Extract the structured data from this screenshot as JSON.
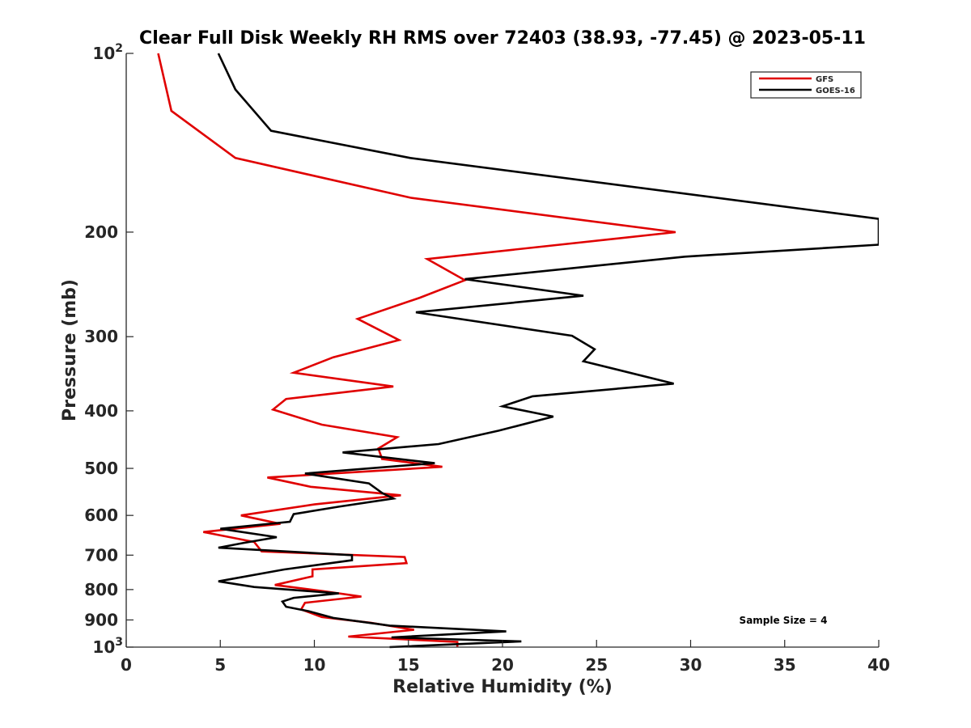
{
  "chart_data": {
    "type": "line",
    "title": "Clear Full Disk Weekly RH RMS over 72403 (38.93, -77.45) @ 2023-05-11",
    "xlabel": "Relative Humidity (%)",
    "ylabel": "Pressure (mb)",
    "xlim": [
      0,
      40
    ],
    "ylim": [
      100,
      1000
    ],
    "yscale": "log",
    "yreversed": true,
    "grid": false,
    "legend_position": "top-right",
    "x_ticks": [
      0,
      5,
      10,
      15,
      20,
      25,
      30,
      35,
      40
    ],
    "y_ticks": [
      {
        "value": 100,
        "label": "10",
        "sup": "2"
      },
      {
        "value": 200,
        "label": "200",
        "sup": ""
      },
      {
        "value": 300,
        "label": "300",
        "sup": ""
      },
      {
        "value": 400,
        "label": "400",
        "sup": ""
      },
      {
        "value": 500,
        "label": "500",
        "sup": ""
      },
      {
        "value": 600,
        "label": "600",
        "sup": ""
      },
      {
        "value": 700,
        "label": "700",
        "sup": ""
      },
      {
        "value": 800,
        "label": "800",
        "sup": ""
      },
      {
        "value": 900,
        "label": "900",
        "sup": ""
      },
      {
        "value": 1000,
        "label": "10",
        "sup": "3"
      }
    ],
    "annotation": "Sample Size = 4",
    "series": [
      {
        "name": "GFS",
        "color": "#e00000",
        "points": [
          [
            1.7,
            100
          ],
          [
            2.4,
            125
          ],
          [
            5.8,
            150
          ],
          [
            15.1,
            175
          ],
          [
            29.2,
            200
          ],
          [
            16.0,
            222
          ],
          [
            18.0,
            241
          ],
          [
            15.6,
            258
          ],
          [
            12.3,
            280
          ],
          [
            14.5,
            304
          ],
          [
            11.0,
            325
          ],
          [
            8.9,
            345
          ],
          [
            14.2,
            364
          ],
          [
            8.5,
            382
          ],
          [
            7.8,
            398
          ],
          [
            10.4,
            422
          ],
          [
            14.4,
            443
          ],
          [
            13.4,
            463
          ],
          [
            13.6,
            482
          ],
          [
            16.8,
            497
          ],
          [
            7.5,
            518
          ],
          [
            9.8,
            537
          ],
          [
            14.6,
            555
          ],
          [
            10.0,
            575
          ],
          [
            6.1,
            600
          ],
          [
            8.2,
            620
          ],
          [
            4.1,
            640
          ],
          [
            6.8,
            665
          ],
          [
            7.2,
            690
          ],
          [
            14.8,
            705
          ],
          [
            14.9,
            722
          ],
          [
            9.9,
            740
          ],
          [
            9.9,
            760
          ],
          [
            7.9,
            786
          ],
          [
            10.5,
            805
          ],
          [
            12.5,
            822
          ],
          [
            9.5,
            842
          ],
          [
            9.3,
            864
          ],
          [
            10.4,
            890
          ],
          [
            13.0,
            910
          ],
          [
            15.3,
            935
          ],
          [
            11.8,
            960
          ],
          [
            17.6,
            980
          ],
          [
            17.6,
            998
          ]
        ]
      },
      {
        "name": "GOES-16",
        "color": "#000000",
        "points": [
          [
            4.9,
            100
          ],
          [
            5.8,
            115
          ],
          [
            7.7,
            135
          ],
          [
            15.1,
            150
          ],
          [
            40.0,
            190
          ],
          [
            40.0,
            210
          ],
          [
            29.7,
            220
          ],
          [
            18.0,
            240
          ],
          [
            24.3,
            256
          ],
          [
            15.4,
            273
          ],
          [
            23.7,
            299
          ],
          [
            24.9,
            315
          ],
          [
            24.3,
            330
          ],
          [
            29.1,
            360
          ],
          [
            21.6,
            378
          ],
          [
            20.0,
            393
          ],
          [
            22.7,
            409
          ],
          [
            19.8,
            432
          ],
          [
            16.6,
            455
          ],
          [
            11.5,
            470
          ],
          [
            16.4,
            490
          ],
          [
            9.5,
            510
          ],
          [
            12.9,
            530
          ],
          [
            13.6,
            550
          ],
          [
            14.2,
            562
          ],
          [
            11.3,
            580
          ],
          [
            8.9,
            597
          ],
          [
            8.7,
            615
          ],
          [
            5.0,
            632
          ],
          [
            8.0,
            653
          ],
          [
            6.2,
            668
          ],
          [
            4.9,
            680
          ],
          [
            12.0,
            700
          ],
          [
            12.0,
            714
          ],
          [
            8.4,
            740
          ],
          [
            4.9,
            775
          ],
          [
            6.8,
            792
          ],
          [
            11.3,
            812
          ],
          [
            8.9,
            826
          ],
          [
            8.3,
            838
          ],
          [
            8.5,
            855
          ],
          [
            9.7,
            870
          ],
          [
            11.0,
            893
          ],
          [
            14.0,
            920
          ],
          [
            20.2,
            941
          ],
          [
            14.1,
            963
          ],
          [
            21.0,
            978
          ],
          [
            14.0,
            1000
          ]
        ]
      }
    ]
  }
}
